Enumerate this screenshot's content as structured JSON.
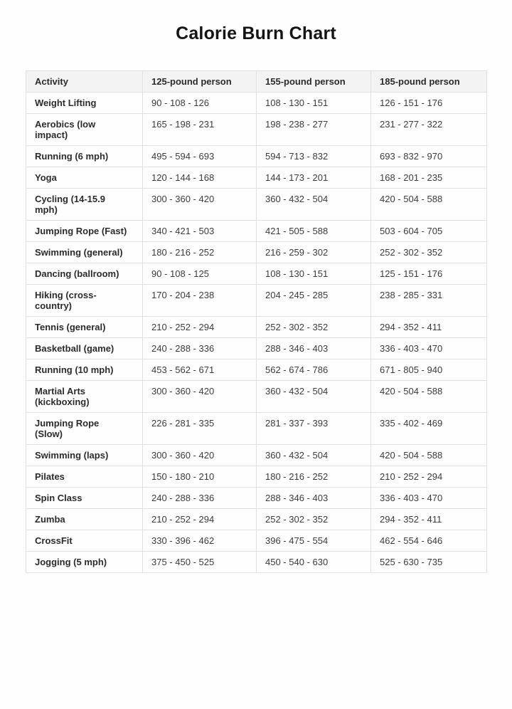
{
  "page": {
    "title": "Calorie Burn Chart"
  },
  "colors": {
    "header_bg": "#f3f3f3",
    "border": "#e1e1e1",
    "heading_text": "#2b2b2b",
    "value_text": "#3b3b3b"
  },
  "chart_data": {
    "type": "table",
    "title": "Calorie Burn Chart",
    "columns": [
      "Activity",
      "125-pound person",
      "155-pound person",
      "185-pound person"
    ],
    "rows": [
      [
        "Weight Lifting",
        "90 - 108 - 126",
        "108 - 130 - 151",
        "126 - 151 - 176"
      ],
      [
        "Aerobics (low\nimpact)",
        "165 - 198 - 231",
        "198 - 238 - 277",
        "231 - 277 - 322"
      ],
      [
        "Running (6 mph)",
        "495 - 594 - 693",
        "594 - 713 - 832",
        "693 - 832 - 970"
      ],
      [
        "Yoga",
        "120 - 144 - 168",
        "144 - 173 - 201",
        "168 - 201 - 235"
      ],
      [
        "Cycling (14-15.9\nmph)",
        "300 - 360 - 420",
        "360 - 432 - 504",
        "420 - 504 - 588"
      ],
      [
        "Jumping Rope (Fast)",
        "340 - 421 - 503",
        "421 - 505 - 588",
        "503 - 604 - 705"
      ],
      [
        "Swimming (general)",
        "180 - 216 - 252",
        "216 - 259 - 302",
        "252 - 302 - 352"
      ],
      [
        "Dancing (ballroom)",
        "90 - 108 - 125",
        "108 - 130 - 151",
        "125 - 151 - 176"
      ],
      [
        "Hiking (cross-\ncountry)",
        "170 - 204 - 238",
        "204 - 245 - 285",
        "238 - 285 - 331"
      ],
      [
        "Tennis (general)",
        "210 - 252 - 294",
        "252 - 302 - 352",
        "294 - 352 - 411"
      ],
      [
        "Basketball (game)",
        "240 - 288 - 336",
        "288 - 346 - 403",
        "336 - 403 - 470"
      ],
      [
        "Running (10 mph)",
        "453 - 562 - 671",
        "562 - 674 - 786",
        "671 - 805 - 940"
      ],
      [
        "Martial Arts\n(kickboxing)",
        "300 - 360 - 420",
        "360 - 432 - 504",
        "420 - 504 - 588"
      ],
      [
        "Jumping Rope\n(Slow)",
        "226 - 281 - 335",
        "281 - 337 - 393",
        "335 - 402 - 469"
      ],
      [
        "Swimming (laps)",
        "300 - 360 - 420",
        "360 - 432 - 504",
        "420 - 504 - 588"
      ],
      [
        "Pilates",
        "150 - 180 - 210",
        "180 - 216 - 252",
        "210 - 252 - 294"
      ],
      [
        "Spin Class",
        "240 - 288 - 336",
        "288 - 346 - 403",
        "336 - 403 - 470"
      ],
      [
        "Zumba",
        "210 - 252 - 294",
        "252 - 302 - 352",
        "294 - 352 - 411"
      ],
      [
        "CrossFit",
        "330 - 396 - 462",
        "396 - 475 - 554",
        "462 - 554 - 646"
      ],
      [
        "Jogging (5 mph)",
        "375 - 450 - 525",
        "450 - 540 - 630",
        "525 - 630 - 735"
      ]
    ]
  }
}
